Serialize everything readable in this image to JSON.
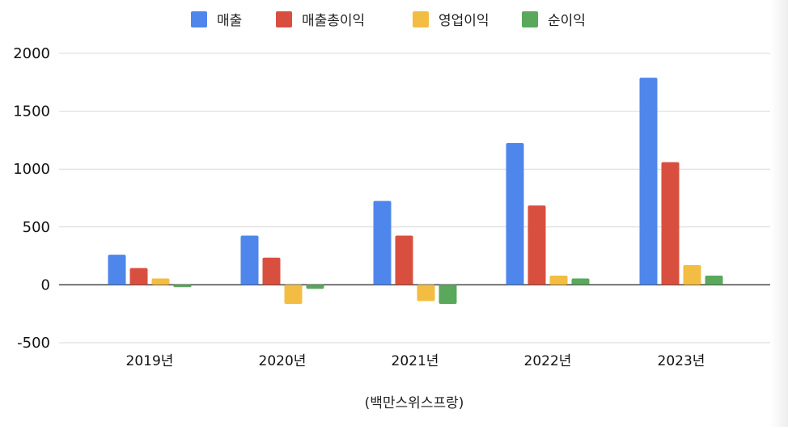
{
  "chart_data": {
    "type": "bar",
    "categories": [
      "2019년",
      "2020년",
      "2021년",
      "2022년",
      "2023년"
    ],
    "series": [
      {
        "name": "매출",
        "color": "#4f86ec",
        "values": [
          260,
          425,
          725,
          1225,
          1790
        ]
      },
      {
        "name": "매출총이익",
        "color": "#d94f3f",
        "values": [
          145,
          235,
          425,
          685,
          1060
        ]
      },
      {
        "name": "영업이익",
        "color": "#f3bd43",
        "values": [
          55,
          -165,
          -140,
          80,
          170
        ]
      },
      {
        "name": "순이익",
        "color": "#59a85c",
        "values": [
          -20,
          -35,
          -165,
          55,
          80
        ]
      }
    ],
    "yticks": [
      2000,
      1500,
      1000,
      500,
      0,
      -500
    ],
    "ylim": [
      -500,
      2000
    ],
    "xlabel": "(백만스위스프랑)",
    "ylabel": "",
    "grid": true,
    "legend_position": "top-center"
  }
}
